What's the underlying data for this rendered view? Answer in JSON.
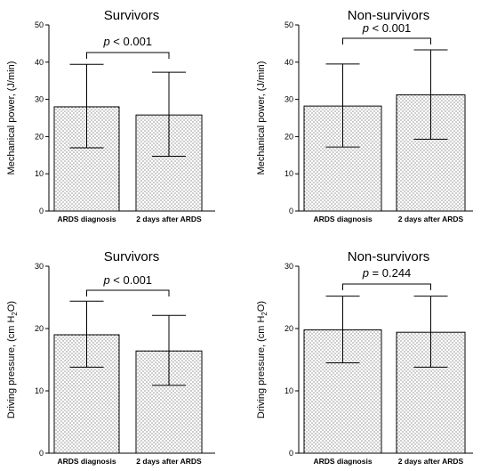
{
  "chart_data": [
    {
      "type": "bar",
      "title": "Survivors",
      "ylabel": "Mechanical power, (J/min)",
      "ylabel_sub": "",
      "ylabel_tail": "",
      "categories": [
        "ARDS diagnosis",
        "2 days after ARDS"
      ],
      "values": [
        28.0,
        25.8
      ],
      "error_low": [
        17.0,
        14.7
      ],
      "error_high": [
        39.4,
        37.3
      ],
      "ylim": [
        0,
        50
      ],
      "yticks": [
        "0",
        "10",
        "20",
        "30",
        "40",
        "50"
      ],
      "annotation": {
        "p_symbol": "p",
        "text": " < 0.001"
      }
    },
    {
      "type": "bar",
      "title": "Non-survivors",
      "ylabel": "Mechanical power, (J/min)",
      "ylabel_sub": "",
      "ylabel_tail": "",
      "categories": [
        "ARDS diagnosis",
        "2 days after ARDS"
      ],
      "values": [
        28.2,
        31.2
      ],
      "error_low": [
        17.2,
        19.3
      ],
      "error_high": [
        39.5,
        43.3
      ],
      "ylim": [
        0,
        50
      ],
      "yticks": [
        "0",
        "10",
        "20",
        "30",
        "40",
        "50"
      ],
      "annotation": {
        "p_symbol": "p",
        "text": " < 0.001"
      }
    },
    {
      "type": "bar",
      "title": "Survivors",
      "ylabel": "Driving pressure, (cm H",
      "ylabel_sub": "2",
      "ylabel_tail": "O)",
      "categories": [
        "ARDS diagnosis",
        "2 days after ARDS"
      ],
      "values": [
        19.0,
        16.4
      ],
      "error_low": [
        13.8,
        10.9
      ],
      "error_high": [
        24.4,
        22.1
      ],
      "ylim": [
        0,
        30
      ],
      "yticks": [
        "0",
        "10",
        "20",
        "30"
      ],
      "annotation": {
        "p_symbol": "p",
        "text": " < 0.001"
      }
    },
    {
      "type": "bar",
      "title": "Non-survivors",
      "ylabel": "Driving pressure, (cm H",
      "ylabel_sub": "2",
      "ylabel_tail": "O)",
      "categories": [
        "ARDS diagnosis",
        "2 days after ARDS"
      ],
      "values": [
        19.8,
        19.4
      ],
      "error_low": [
        14.5,
        13.8
      ],
      "error_high": [
        25.2,
        25.2
      ],
      "ylim": [
        0,
        30
      ],
      "yticks": [
        "0",
        "10",
        "20",
        "30"
      ],
      "annotation": {
        "p_symbol": "p",
        "text": " = 0.244"
      }
    }
  ]
}
